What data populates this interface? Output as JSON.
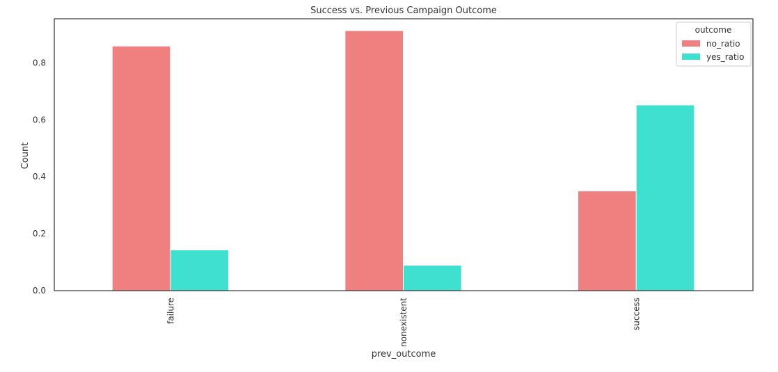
{
  "chart_data": {
    "type": "bar",
    "title": "Success vs. Previous Campaign Outcome",
    "xlabel": "prev_outcome",
    "ylabel": "Count",
    "categories": [
      "failure",
      "nonexistent",
      "success"
    ],
    "series": [
      {
        "name": "no_ratio",
        "values": [
          0.858,
          0.912,
          0.349
        ],
        "color": "#F08080"
      },
      {
        "name": "yes_ratio",
        "values": [
          0.142,
          0.088,
          0.651
        ],
        "color": "#40E0D0"
      }
    ],
    "ylim": [
      0,
      0.955
    ],
    "yticks": [
      "0.0",
      "0.2",
      "0.4",
      "0.6",
      "0.8"
    ],
    "ytick_values": [
      0,
      0.2,
      0.4,
      0.6,
      0.8
    ],
    "grid": false,
    "legend": {
      "title": "outcome",
      "placement": "top-right"
    }
  }
}
